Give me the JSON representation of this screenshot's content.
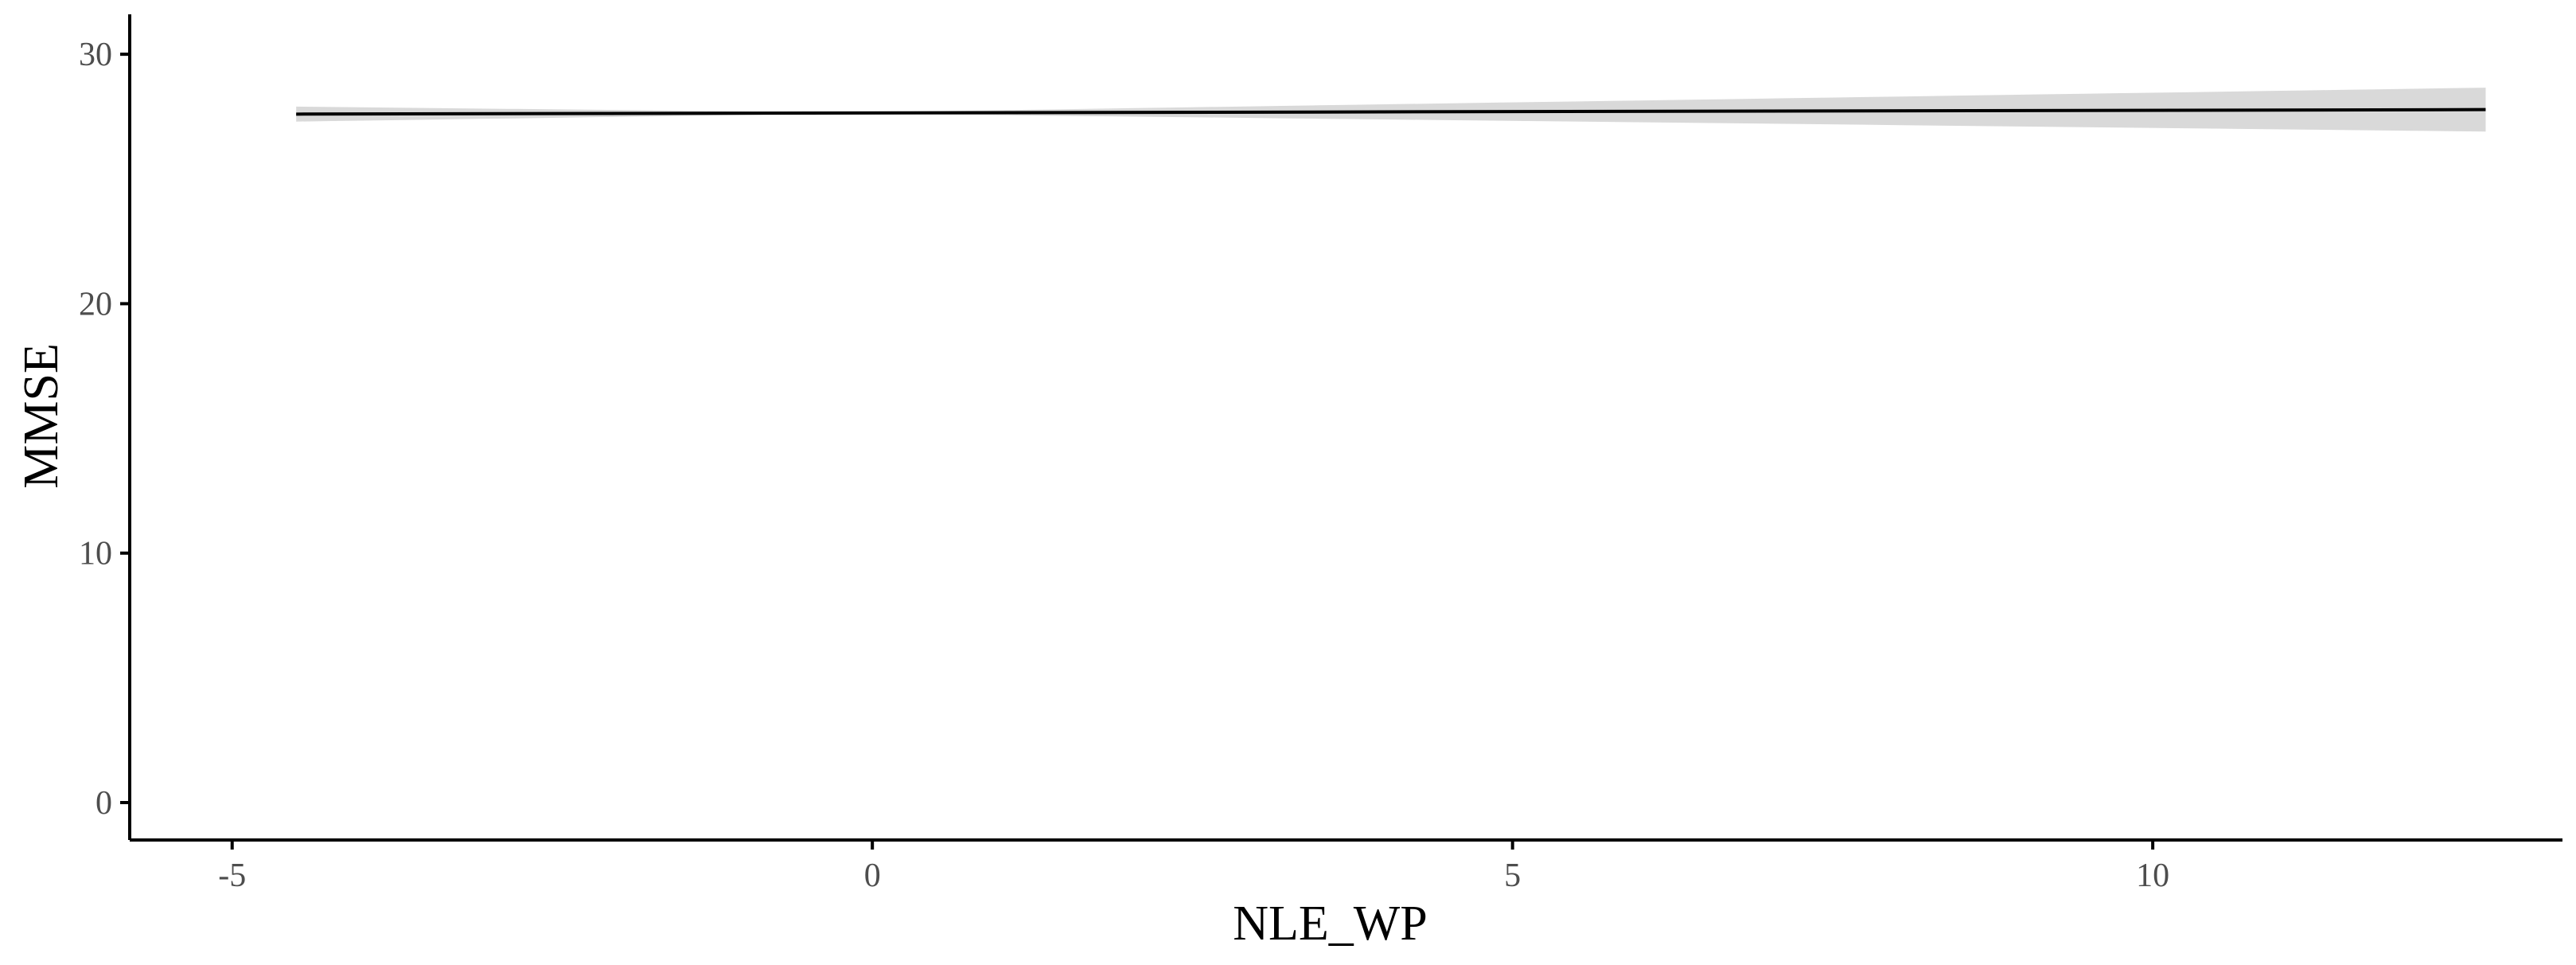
{
  "chart_data": {
    "type": "line",
    "title": "",
    "xlabel": "NLE_WP",
    "ylabel": "MMSE",
    "xlim": [
      -5.8,
      13.2
    ],
    "ylim": [
      -1.5,
      31.6
    ],
    "x_ticks": [
      -5,
      0,
      5,
      10
    ],
    "x_tick_labels": [
      "-5",
      "0",
      "5",
      "10"
    ],
    "y_ticks": [
      0,
      10,
      20,
      30
    ],
    "y_tick_labels": [
      "0",
      "10",
      "20",
      "30"
    ],
    "grid": false,
    "legend": "none",
    "series": [
      {
        "x": [
          -4.5,
          12.6
        ],
        "y": [
          27.6,
          27.78
        ],
        "ci_lower": [
          27.3,
          26.9
        ],
        "ci_upper": [
          27.9,
          28.66
        ],
        "ci_center_x": -0.2
      }
    ],
    "colors": {
      "line": "#000000",
      "band": "#d9d9d9",
      "axis": "#000000",
      "tick_text": "#4d4d4d"
    }
  }
}
